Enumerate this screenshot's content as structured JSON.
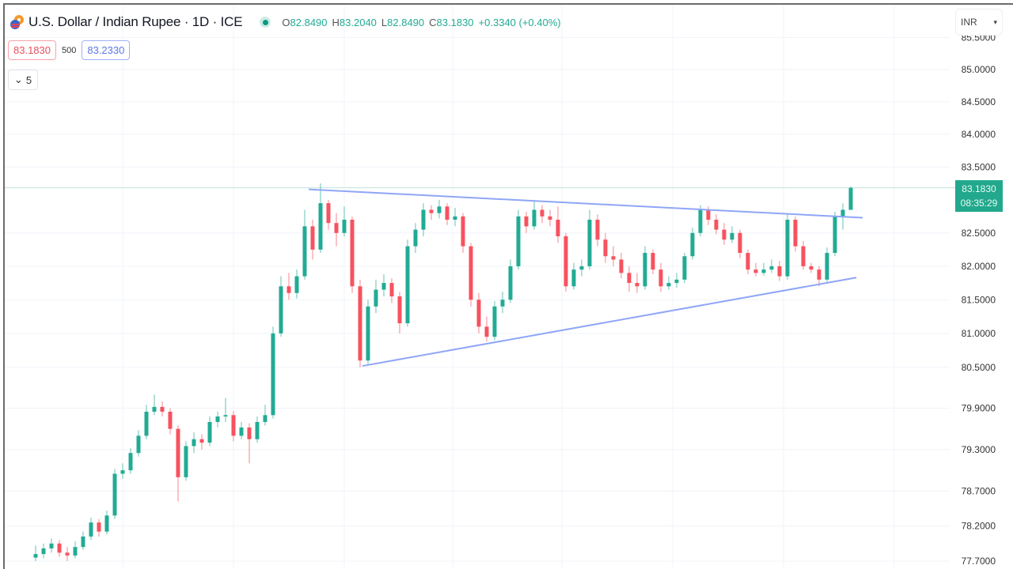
{
  "header": {
    "symbol_title": "U.S. Dollar / Indian Rupee · 1D · ICE",
    "market_status": "open",
    "ohlc": {
      "o_label": "O",
      "o": "82.8490",
      "h_label": "H",
      "h": "83.2040",
      "l_label": "L",
      "l": "82.8490",
      "c_label": "C",
      "c": "83.1830",
      "change": "+0.3340 (+0.40%)"
    }
  },
  "trade": {
    "sell_price": "83.1830",
    "quantity": "500",
    "buy_price": "83.2330"
  },
  "indicators_toggle": {
    "count": "5"
  },
  "currency_select": {
    "value": "INR"
  },
  "last_price": {
    "price": "83.1830",
    "countdown": "08:35:29"
  },
  "colors": {
    "up": "#22ab94",
    "down": "#f7525f",
    "trendline": "#8fa6f7",
    "last_price": "#22a88c",
    "grid": "#f0f3fa"
  },
  "chart_data": {
    "type": "candlestick",
    "scale": "log",
    "grid": true,
    "y_ticks": [
      "85.5000",
      "85.0000",
      "84.5000",
      "84.0000",
      "83.5000",
      "82.5000",
      "82.0000",
      "81.5000",
      "81.0000",
      "80.5000",
      "79.9000",
      "79.3000",
      "78.7000",
      "78.2000",
      "77.7000"
    ],
    "last_price_line": 83.183,
    "trendlines": [
      {
        "name": "upper",
        "start": [
          34.5,
          83.16
        ],
        "end": [
          104.5,
          82.73
        ]
      },
      {
        "name": "lower",
        "start": [
          41.3,
          80.52
        ],
        "end": [
          103.7,
          81.83
        ]
      }
    ],
    "candles_ohlc": [
      [
        77.75,
        77.92,
        77.7,
        77.8
      ],
      [
        77.8,
        77.95,
        77.74,
        77.88
      ],
      [
        77.88,
        78.02,
        77.82,
        77.95
      ],
      [
        77.95,
        78.0,
        77.76,
        77.82
      ],
      [
        77.82,
        77.9,
        77.7,
        77.78
      ],
      [
        77.78,
        77.98,
        77.74,
        77.9
      ],
      [
        77.9,
        78.12,
        77.86,
        78.05
      ],
      [
        78.05,
        78.32,
        78.0,
        78.25
      ],
      [
        78.25,
        78.3,
        78.05,
        78.12
      ],
      [
        78.12,
        78.42,
        78.08,
        78.35
      ],
      [
        78.35,
        79.02,
        78.3,
        78.95
      ],
      [
        78.95,
        79.1,
        78.88,
        79.0
      ],
      [
        79.0,
        79.32,
        78.95,
        79.25
      ],
      [
        79.25,
        79.58,
        79.2,
        79.5
      ],
      [
        79.5,
        79.95,
        79.45,
        79.85
      ],
      [
        79.85,
        80.1,
        79.8,
        79.92
      ],
      [
        79.92,
        80.0,
        79.78,
        79.85
      ],
      [
        79.85,
        79.9,
        79.52,
        79.6
      ],
      [
        79.6,
        79.65,
        78.55,
        78.9
      ],
      [
        78.9,
        79.42,
        78.85,
        79.35
      ],
      [
        79.35,
        79.55,
        79.25,
        79.45
      ],
      [
        79.45,
        79.52,
        79.3,
        79.4
      ],
      [
        79.4,
        79.78,
        79.35,
        79.7
      ],
      [
        79.7,
        79.85,
        79.62,
        79.78
      ],
      [
        79.78,
        80.05,
        79.7,
        79.8
      ],
      [
        79.8,
        79.86,
        79.42,
        79.5
      ],
      [
        79.5,
        79.7,
        79.45,
        79.62
      ],
      [
        79.62,
        79.68,
        79.1,
        79.45
      ],
      [
        79.45,
        79.78,
        79.4,
        79.7
      ],
      [
        79.7,
        79.95,
        79.65,
        79.8
      ],
      [
        79.8,
        81.1,
        79.75,
        81.0
      ],
      [
        81.0,
        81.85,
        80.95,
        81.7
      ],
      [
        81.7,
        81.9,
        81.5,
        81.6
      ],
      [
        81.6,
        81.95,
        81.52,
        81.85
      ],
      [
        81.85,
        82.85,
        81.8,
        82.6
      ],
      [
        82.6,
        82.7,
        82.1,
        82.25
      ],
      [
        82.25,
        83.25,
        82.2,
        82.95
      ],
      [
        82.95,
        83.0,
        82.55,
        82.65
      ],
      [
        82.65,
        82.8,
        82.3,
        82.5
      ],
      [
        82.5,
        82.9,
        82.45,
        82.7
      ],
      [
        82.7,
        82.75,
        81.6,
        81.7
      ],
      [
        81.7,
        81.8,
        80.5,
        80.6
      ],
      [
        80.6,
        81.5,
        80.55,
        81.4
      ],
      [
        81.4,
        81.8,
        81.3,
        81.65
      ],
      [
        81.65,
        81.88,
        81.55,
        81.75
      ],
      [
        81.75,
        81.82,
        81.45,
        81.55
      ],
      [
        81.55,
        81.62,
        81.0,
        81.15
      ],
      [
        81.15,
        82.4,
        81.1,
        82.3
      ],
      [
        82.3,
        82.65,
        82.2,
        82.55
      ],
      [
        82.55,
        82.95,
        82.45,
        82.85
      ],
      [
        82.85,
        82.92,
        82.7,
        82.8
      ],
      [
        82.8,
        83.0,
        82.72,
        82.9
      ],
      [
        82.9,
        82.95,
        82.62,
        82.7
      ],
      [
        82.7,
        82.88,
        82.6,
        82.75
      ],
      [
        82.75,
        82.8,
        82.2,
        82.3
      ],
      [
        82.3,
        82.35,
        81.4,
        81.5
      ],
      [
        81.5,
        81.6,
        81.0,
        81.1
      ],
      [
        81.1,
        81.25,
        80.88,
        80.95
      ],
      [
        80.95,
        81.48,
        80.9,
        81.4
      ],
      [
        81.4,
        81.62,
        81.3,
        81.5
      ],
      [
        81.5,
        82.1,
        81.45,
        82.0
      ],
      [
        82.0,
        82.85,
        81.95,
        82.75
      ],
      [
        82.75,
        82.82,
        82.5,
        82.6
      ],
      [
        82.6,
        82.98,
        82.55,
        82.85
      ],
      [
        82.85,
        82.92,
        82.65,
        82.75
      ],
      [
        82.75,
        82.85,
        82.6,
        82.7
      ],
      [
        82.7,
        82.9,
        82.35,
        82.45
      ],
      [
        82.45,
        82.5,
        81.62,
        81.7
      ],
      [
        81.7,
        82.05,
        81.65,
        81.95
      ],
      [
        81.95,
        82.1,
        81.85,
        82.0
      ],
      [
        82.0,
        82.85,
        81.95,
        82.7
      ],
      [
        82.7,
        82.78,
        82.3,
        82.4
      ],
      [
        82.4,
        82.5,
        82.05,
        82.15
      ],
      [
        82.15,
        82.3,
        82.0,
        82.1
      ],
      [
        82.1,
        82.2,
        81.82,
        81.9
      ],
      [
        81.9,
        82.0,
        81.62,
        81.75
      ],
      [
        81.75,
        81.9,
        81.6,
        81.7
      ],
      [
        81.7,
        82.3,
        81.65,
        82.2
      ],
      [
        82.2,
        82.25,
        81.88,
        81.95
      ],
      [
        81.95,
        82.05,
        81.62,
        81.7
      ],
      [
        81.7,
        81.85,
        81.65,
        81.75
      ],
      [
        81.75,
        81.9,
        81.68,
        81.8
      ],
      [
        81.8,
        82.2,
        81.75,
        82.15
      ],
      [
        82.15,
        82.58,
        82.1,
        82.5
      ],
      [
        82.5,
        82.92,
        82.45,
        82.85
      ],
      [
        82.85,
        82.9,
        82.62,
        82.7
      ],
      [
        82.7,
        82.78,
        82.48,
        82.55
      ],
      [
        82.55,
        82.65,
        82.32,
        82.4
      ],
      [
        82.4,
        82.6,
        82.35,
        82.5
      ],
      [
        82.5,
        82.55,
        82.12,
        82.2
      ],
      [
        82.2,
        82.25,
        81.88,
        81.95
      ],
      [
        81.95,
        82.05,
        81.85,
        81.9
      ],
      [
        81.9,
        82.05,
        81.86,
        81.95
      ],
      [
        81.95,
        82.1,
        81.9,
        82.0
      ],
      [
        82.0,
        82.08,
        81.78,
        81.85
      ],
      [
        81.85,
        82.78,
        81.8,
        82.7
      ],
      [
        82.7,
        82.75,
        82.22,
        82.3
      ],
      [
        82.3,
        82.38,
        81.95,
        82.0
      ],
      [
        82.0,
        82.05,
        81.9,
        81.95
      ],
      [
        81.95,
        82.0,
        81.7,
        81.8
      ],
      [
        81.8,
        82.28,
        81.75,
        82.2
      ],
      [
        82.2,
        82.82,
        82.15,
        82.75
      ],
      [
        82.75,
        82.95,
        82.55,
        82.85
      ],
      [
        82.849,
        83.204,
        82.849,
        83.183
      ]
    ]
  }
}
